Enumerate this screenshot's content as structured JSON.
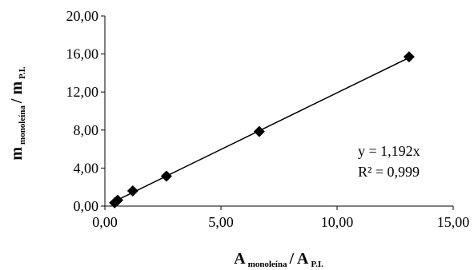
{
  "chart_data": {
    "type": "scatter",
    "x_ticks": [
      "0,00",
      "5,00",
      "10,00",
      "15,00"
    ],
    "y_ticks": [
      "0,00",
      "4,00",
      "8,00",
      "12,00",
      "16,00",
      "20,00"
    ],
    "xlim": [
      0,
      15
    ],
    "ylim": [
      0,
      20
    ],
    "xlabel": {
      "main": "A",
      "sub1": "monoleína",
      "slash": "/ A",
      "sub2": "P.I."
    },
    "ylabel": {
      "main": "m",
      "sub1": "monoleína",
      "slash": "/ m",
      "sub2": "P.I."
    },
    "points": [
      {
        "x": 0.42,
        "y": 0.35
      },
      {
        "x": 0.55,
        "y": 0.62
      },
      {
        "x": 1.2,
        "y": 1.6
      },
      {
        "x": 2.65,
        "y": 3.15
      },
      {
        "x": 6.65,
        "y": 7.85
      },
      {
        "x": 13.1,
        "y": 15.7
      }
    ],
    "trendline": {
      "slope": 1.192,
      "x_range": [
        0.35,
        13.1
      ]
    },
    "annotations": {
      "equation": "y = 1,192x",
      "r2": "R² = 0,999"
    },
    "grid": false,
    "legend": "none",
    "marker": "diamond",
    "color": "#000000"
  }
}
